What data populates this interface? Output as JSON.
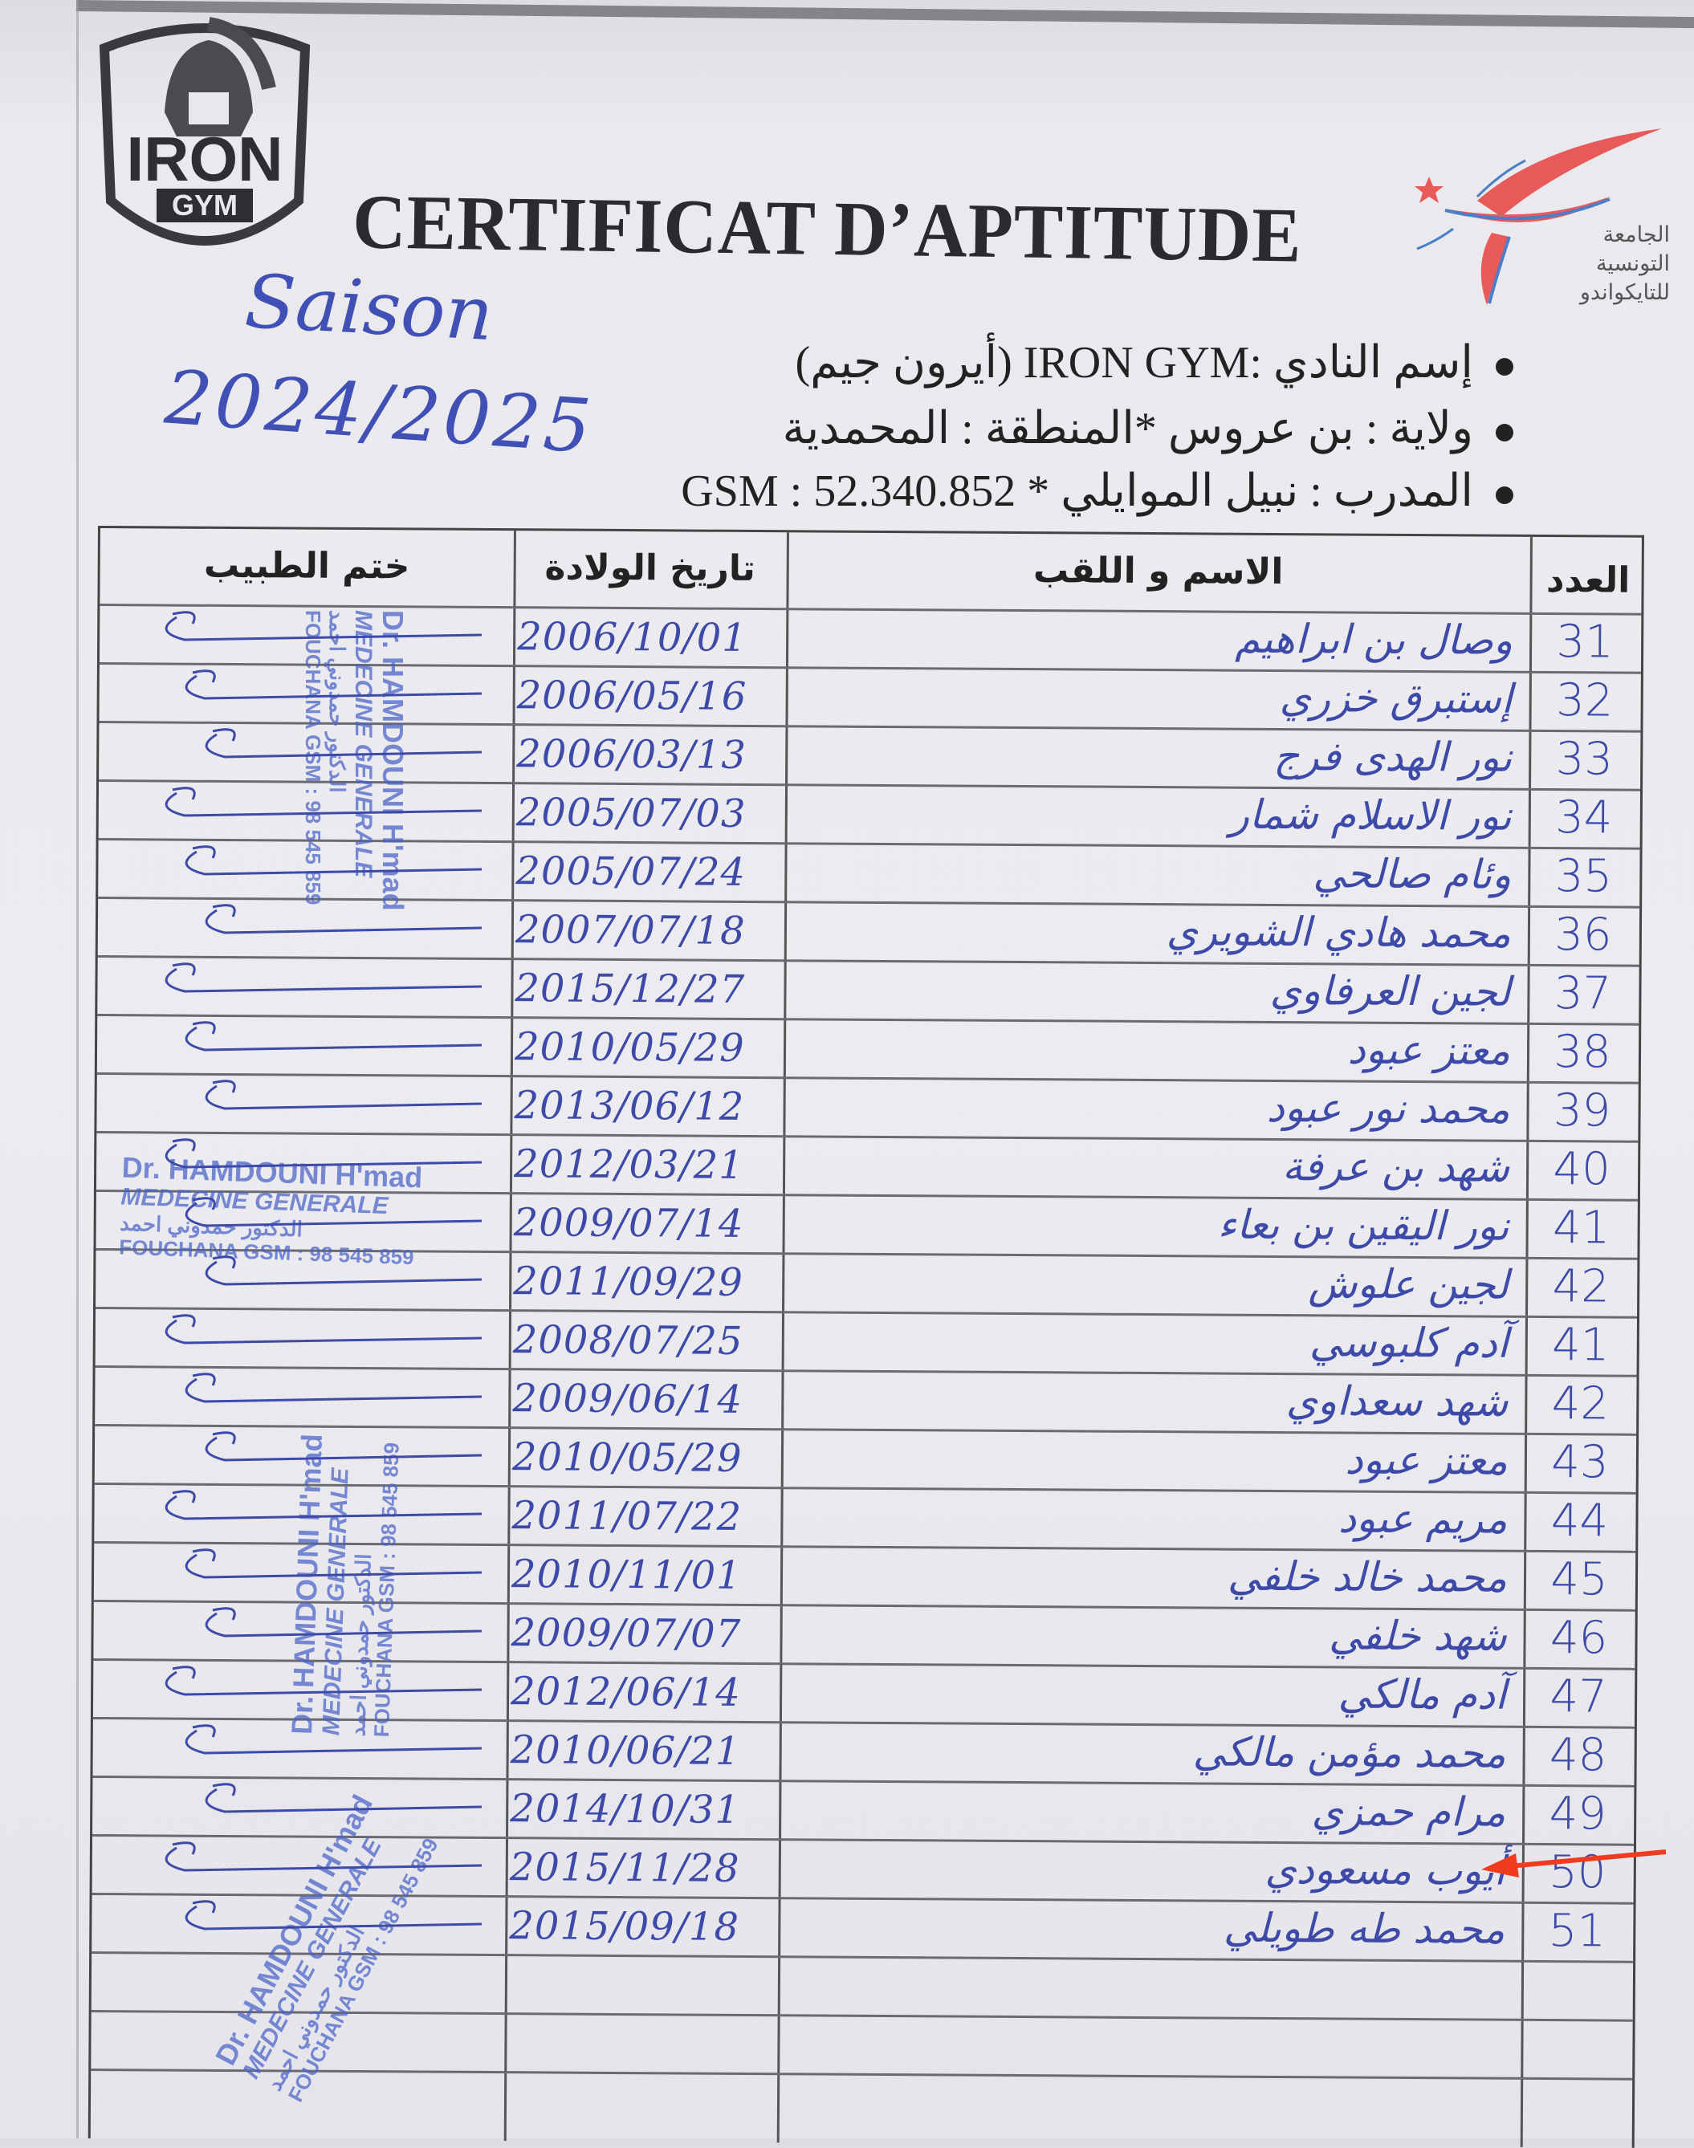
{
  "header": {
    "club_logo_text": [
      "IRON",
      "GYM"
    ],
    "title": "CERTIFICAT D’APTITUDE",
    "federation_logo_text": [
      "الجامعة",
      "التونسية",
      "للتايكواندو"
    ],
    "season_label": "Saison",
    "season": "2024/2025"
  },
  "info": {
    "club": "إسم النادي :IRON GYM (أيرون جيم)",
    "region": "ولاية : بن عروس  *المنطقة : المحمدية",
    "coach": "المدرب : نبيل الموايلي  * GSM : 52.340.852"
  },
  "table": {
    "columns": {
      "number": "العدد",
      "name": "الاسم و اللقب",
      "birth_date": "تاريخ الولادة",
      "doctor_stamp": "ختم الطبيب"
    },
    "rows": [
      {
        "number": "31",
        "name": "وصال بن ابراهيم",
        "birth_date": "2006/10/01"
      },
      {
        "number": "32",
        "name": "إستبرق خزري",
        "birth_date": "2006/05/16"
      },
      {
        "number": "33",
        "name": "نور الهدى فرج",
        "birth_date": "2006/03/13"
      },
      {
        "number": "34",
        "name": "نور الاسلام شمار",
        "birth_date": "2005/07/03"
      },
      {
        "number": "35",
        "name": "وئام صالحي",
        "birth_date": "2005/07/24"
      },
      {
        "number": "36",
        "name": "محمد هادي الشويري",
        "birth_date": "2007/07/18"
      },
      {
        "number": "37",
        "name": "لجين العرفاوي",
        "birth_date": "2015/12/27"
      },
      {
        "number": "38",
        "name": "معتز عبود",
        "birth_date": "2010/05/29"
      },
      {
        "number": "39",
        "name": "محمد نور عبود",
        "birth_date": "2013/06/12"
      },
      {
        "number": "40",
        "name": "شهد بن عرفة",
        "birth_date": "2012/03/21"
      },
      {
        "number": "41",
        "name": "نور اليقين بن بعاء",
        "birth_date": "2009/07/14"
      },
      {
        "number": "42",
        "name": "لجين علوش",
        "birth_date": "2011/09/29"
      },
      {
        "number": "41",
        "name": "آدم كلبوسي",
        "birth_date": "2008/07/25"
      },
      {
        "number": "42",
        "name": "شهد سعداوي",
        "birth_date": "2009/06/14"
      },
      {
        "number": "43",
        "name": "معتز عبود",
        "birth_date": "2010/05/29"
      },
      {
        "number": "44",
        "name": "مريم عبود",
        "birth_date": "2011/07/22"
      },
      {
        "number": "45",
        "name": "محمد خالد خلفي",
        "birth_date": "2010/11/01"
      },
      {
        "number": "46",
        "name": "شهد خلفي",
        "birth_date": "2009/07/07"
      },
      {
        "number": "47",
        "name": "آدم مالكي",
        "birth_date": "2012/06/14"
      },
      {
        "number": "48",
        "name": "محمد مؤمن مالكي",
        "birth_date": "2010/06/21"
      },
      {
        "number": "49",
        "name": "مرام حمزي",
        "birth_date": "2014/10/31"
      },
      {
        "number": "50",
        "name": "أيوب مسعودي",
        "birth_date": "2015/11/28"
      },
      {
        "number": "51",
        "name": "محمد طه طويلي",
        "birth_date": "2015/09/18"
      }
    ],
    "highlighted_row_number": "50"
  },
  "stamp": {
    "doctor": "Dr. HAMDOUNI H'mad",
    "specialty": "MEDECINE GENERALE",
    "contact": "FOUCHANA GSM : 98 545 859",
    "arabic": "الدكتور حمدوني احمد"
  },
  "colors": {
    "ink": "#3d4aa8",
    "stamp": "#4a62c8",
    "arrow": "#f03c1e",
    "federation_red": "#e8595a",
    "federation_blue": "#4a7fc8"
  }
}
